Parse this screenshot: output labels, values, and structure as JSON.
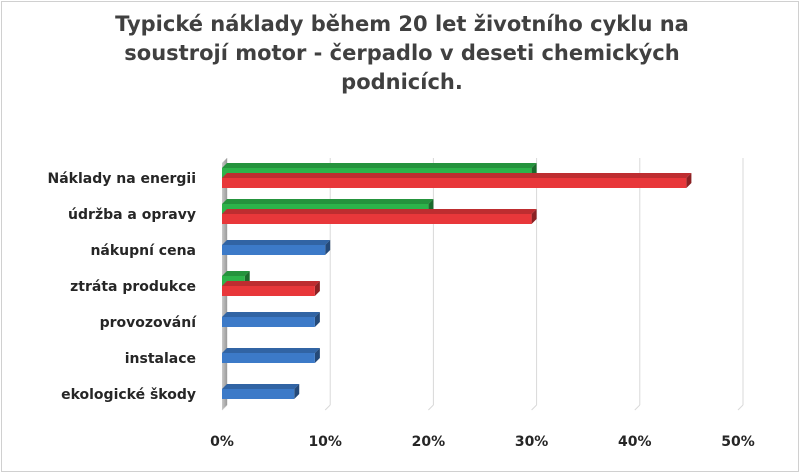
{
  "chart_data": {
    "type": "bar",
    "orientation": "horizontal",
    "title": "Typické náklady během 20 let životního cyklu na soustrojí motor - čerpadlo v deseti chemických podnicích.",
    "categories": [
      "Náklady na energii",
      "údržba a opravy",
      "nákupní cena",
      "ztráta produkce",
      "provozování",
      "instalace",
      "ekologické škody"
    ],
    "series": [
      {
        "color": "#2db34a",
        "values": [
          30,
          20,
          null,
          2.2,
          null,
          null,
          null
        ]
      },
      {
        "color": "#e8373a",
        "values": [
          45,
          30,
          null,
          9,
          null,
          null,
          null
        ]
      },
      {
        "color": "#3c7ac8",
        "values": [
          null,
          null,
          10,
          null,
          9,
          9,
          7
        ]
      }
    ],
    "xlim": [
      0,
      50
    ],
    "xticks": [
      0,
      10,
      20,
      30,
      40,
      50
    ],
    "xtick_labels": [
      "0%",
      "10%",
      "20%",
      "30%",
      "40%",
      "50%"
    ],
    "grid": true
  }
}
